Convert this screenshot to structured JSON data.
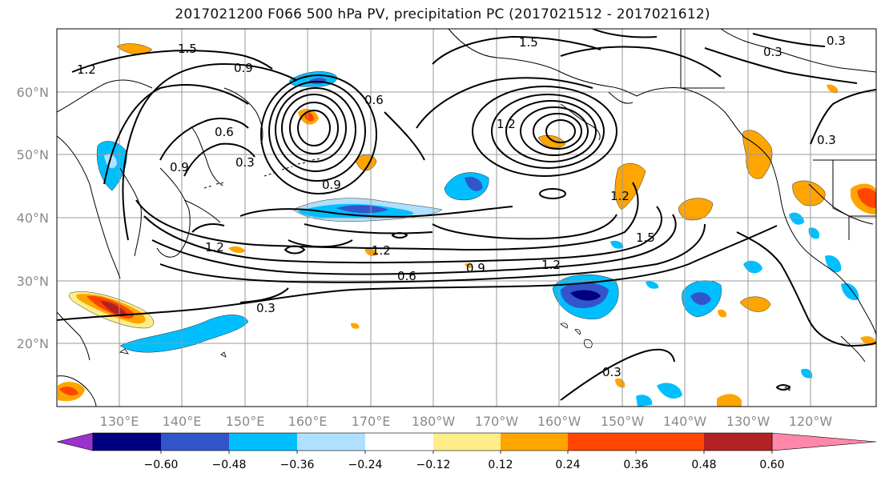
{
  "title": "2017021200 F066 500 hPa PV, precipitation PC (2017021512 - 2017021612)",
  "map": {
    "lon_labels": [
      "130°E",
      "140°E",
      "150°E",
      "160°E",
      "170°E",
      "180°W",
      "170°W",
      "160°W",
      "150°W",
      "140°W",
      "130°W",
      "120°W"
    ],
    "lat_labels": [
      "60°N",
      "50°N",
      "40°N",
      "30°N",
      "20°N"
    ],
    "contour_labels": [
      "1.5",
      "1.2",
      "0.9",
      "1.5",
      "0.3",
      "0.3",
      "0.6",
      "0.6",
      "0.3",
      "0.9",
      "0.9",
      "1.2",
      "1.2",
      "1.2",
      "1.2",
      "0.9",
      "0.6",
      "0.3",
      "1.5",
      "0.3",
      "0.3",
      "1.2"
    ],
    "colors": {
      "grid": "#999999",
      "coast": "#000000",
      "contour": "#000000"
    }
  },
  "colorbar": {
    "ticks": [
      "−0.60",
      "−0.48",
      "−0.36",
      "−0.24",
      "−0.12",
      "0.12",
      "0.24",
      "0.36",
      "0.48",
      "0.60"
    ],
    "colors": [
      "#9933cc",
      "#000080",
      "#3355cc",
      "#00bfff",
      "#b0e0ff",
      "#ffffff",
      "#ffee88",
      "#ffa500",
      "#ff4500",
      "#b22222",
      "#ff88aa"
    ]
  }
}
